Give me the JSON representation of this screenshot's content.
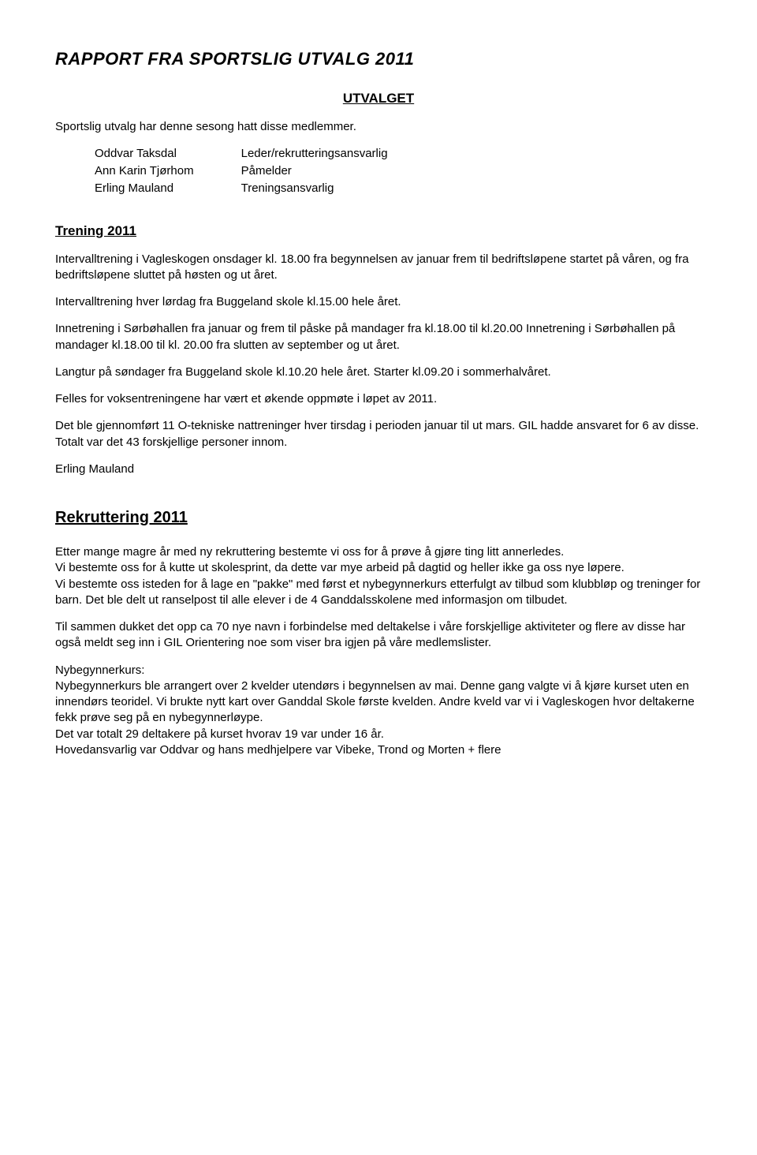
{
  "title": "RAPPORT FRA SPORTSLIG UTVALG 2011",
  "utvalget": {
    "heading": "UTVALGET",
    "intro": "Sportslig utvalg har denne sesong hatt disse medlemmer.",
    "members": [
      {
        "name": "Oddvar Taksdal",
        "role": "Leder/rekrutteringsansvarlig"
      },
      {
        "name": "Ann Karin Tjørhom",
        "role": "Påmelder"
      },
      {
        "name": "Erling Mauland",
        "role": "Treningsansvarlig"
      }
    ]
  },
  "trening": {
    "heading": "Trening 2011",
    "p1": "Intervalltrening i Vagleskogen onsdager kl. 18.00 fra begynnelsen av januar frem til bedriftsløpene startet på våren, og fra bedriftsløpene sluttet på høsten og ut året.",
    "p2": "Intervalltrening hver lørdag fra Buggeland skole kl.15.00  hele året.",
    "p3": "Innetrening i Sørbøhallen fra januar og frem til påske på mandager fra kl.18.00 til kl.20.00 Innetrening i Sørbøhallen på mandager kl.18.00 til kl. 20.00 fra slutten av september og ut året.",
    "p4": "Langtur på søndager fra Buggeland skole kl.10.20 hele året. Starter kl.09.20 i sommerhalvåret.",
    "p5": "Felles for voksentreningene har vært et økende oppmøte i løpet av 2011.",
    "p6": "Det ble gjennomført 11 O-tekniske nattreninger hver tirsdag i perioden januar til ut mars. GIL hadde ansvaret for 6 av disse. Totalt var det 43 forskjellige personer innom.",
    "signature": "Erling Mauland"
  },
  "rekruttering": {
    "heading": "Rekruttering 2011",
    "p1": "Etter mange magre år med ny rekruttering bestemte vi oss for å prøve å gjøre ting litt annerledes.",
    "p2": "Vi bestemte oss for å kutte ut skolesprint, da dette var mye arbeid på dagtid og heller ikke ga oss nye løpere.",
    "p3": "Vi bestemte oss isteden for å lage en \"pakke\" med først et nybegynnerkurs etterfulgt av tilbud som klubbløp og treninger for barn. Det ble delt ut ranselpost til alle elever i de 4 Ganddalsskolene med informasjon om tilbudet.",
    "p4": "Til sammen dukket det opp ca 70 nye navn i forbindelse med deltakelse i våre forskjellige aktiviteter og flere av disse har også meldt seg inn i GIL Orientering noe som viser bra igjen på våre medlemslister.",
    "nybegynner_label": "Nybegynnerkurs:",
    "p5": "Nybegynnerkurs ble arrangert over 2 kvelder utendørs i begynnelsen av mai. Denne gang valgte vi å kjøre kurset uten en innendørs teoridel. Vi brukte nytt kart over Ganddal Skole første kvelden. Andre kveld var vi i Vagleskogen hvor deltakerne fekk prøve seg på en nybegynnerløype.",
    "p6": "Det var totalt 29 deltakere på kurset hvorav 19 var under 16 år.",
    "p7": "Hovedansvarlig var Oddvar og hans medhjelpere var Vibeke, Trond og Morten + flere"
  }
}
